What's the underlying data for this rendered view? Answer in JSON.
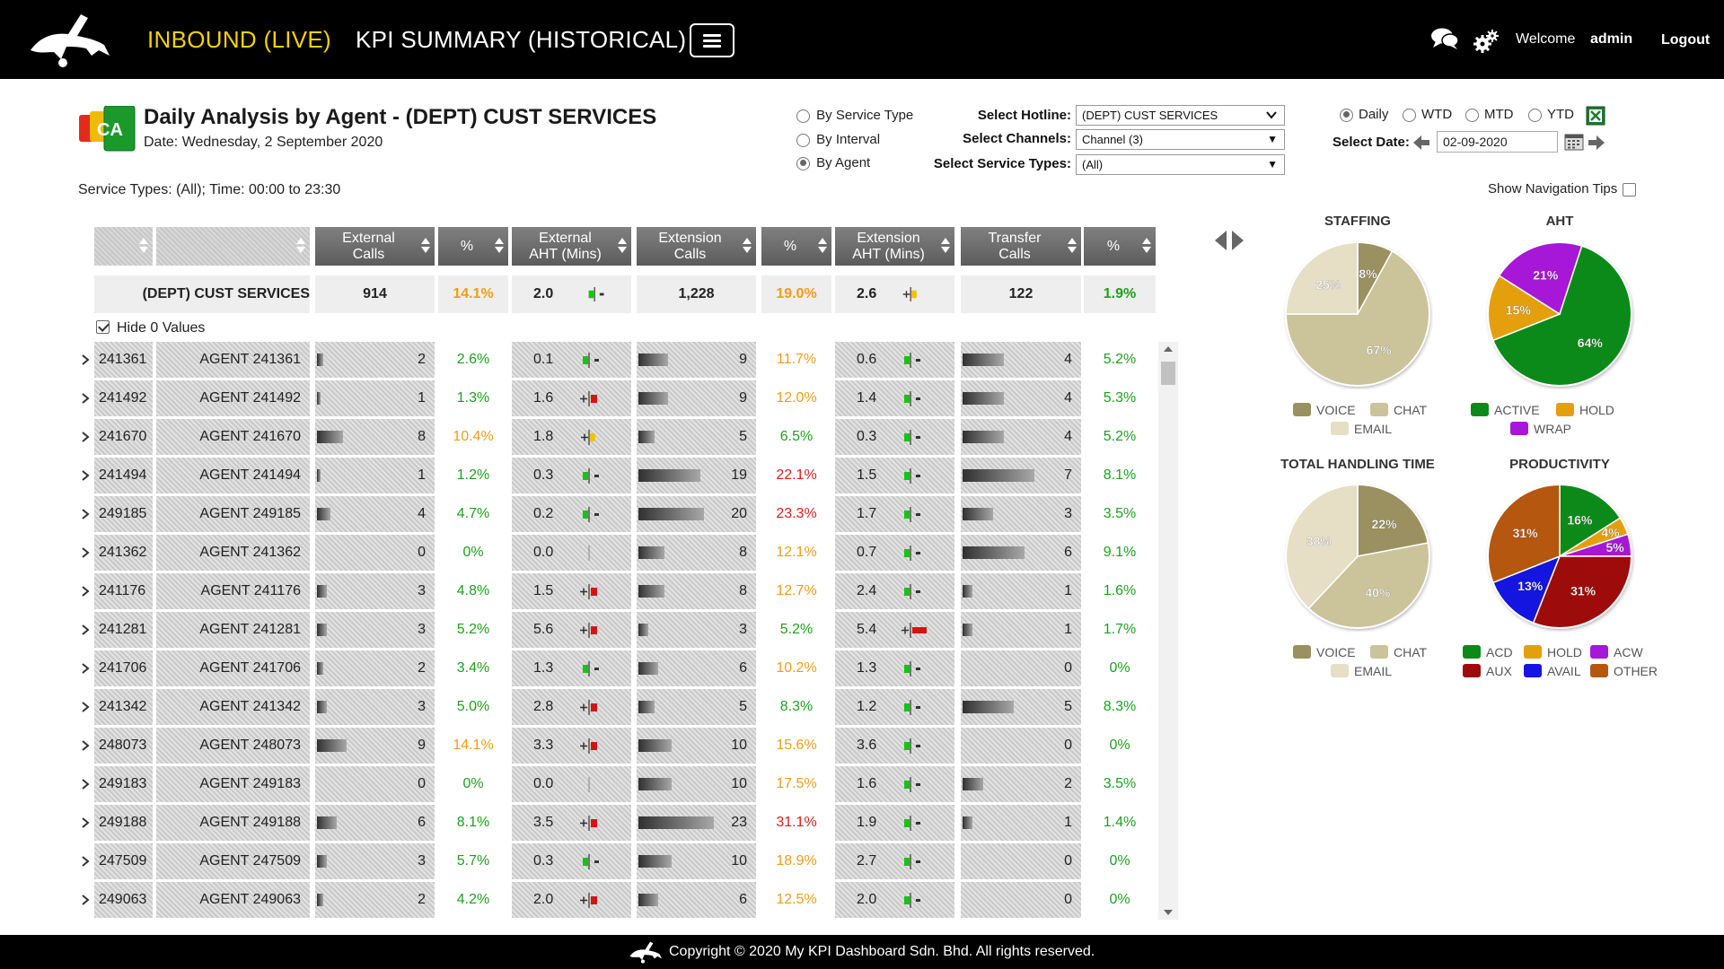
{
  "nav": {
    "live": "INBOUND (LIVE)",
    "kpi": "KPI SUMMARY (HISTORICAL)",
    "welcome": "Welcome",
    "user": "admin",
    "logout": "Logout"
  },
  "report": {
    "icon_text": "CA",
    "title": "Daily Analysis by Agent - (DEPT) CUST SERVICES",
    "date": "Date: Wednesday, 2 September 2020",
    "service_info": "Service Types: (All); Time: 00:00 to 23:30"
  },
  "view_options": [
    "By Service Type",
    "By Interval",
    "By Agent"
  ],
  "view_selected": "By Agent",
  "filters": {
    "hotline_label": "Select Hotline:",
    "hotline_value": "(DEPT) CUST SERVICES",
    "channels_label": "Select Channels:",
    "channels_value": "Channel (3)",
    "service_types_label": "Select Service Types:",
    "service_types_value": "(All)"
  },
  "period_options": [
    "Daily",
    "WTD",
    "MTD",
    "YTD"
  ],
  "period_selected": "Daily",
  "date": {
    "label": "Select Date:",
    "value": "02-09-2020"
  },
  "nav_tips": "Show Navigation Tips",
  "table": {
    "headers": [
      {
        "l1": "",
        "l2": ""
      },
      {
        "l1": "",
        "l2": ""
      },
      {
        "l1": "External",
        "l2": "Calls"
      },
      {
        "l1": "%",
        "l2": ""
      },
      {
        "l1": "External",
        "l2": "AHT (Mins)"
      },
      {
        "l1": "Extension",
        "l2": "Calls"
      },
      {
        "l1": "%",
        "l2": ""
      },
      {
        "l1": "Extension",
        "l2": "AHT (Mins)"
      },
      {
        "l1": "Transfer",
        "l2": "Calls"
      },
      {
        "l1": "%",
        "l2": ""
      }
    ],
    "total": {
      "name": "(DEPT) CUST SERVICES",
      "ext_calls": "914",
      "ext_pct": "14.1%",
      "ext_aht": "2.0",
      "ext_aht_state": "green",
      "xtn_calls": "1,228",
      "xtn_pct": "19.0%",
      "xtn_aht": "2.6",
      "xtn_aht_state": "yellow",
      "trf_calls": "122",
      "trf_pct": "1.9%"
    },
    "hide_zero": "Hide 0 Values",
    "rows": [
      {
        "id": "241361",
        "name": "AGENT 241361",
        "ext_calls": "2",
        "ext_pct": "2.6%",
        "ext_aht": "0.1",
        "ext_state": "green",
        "xtn_calls": "9",
        "xtn_pct": "11.7%",
        "xtn_aht": "0.6",
        "xtn_state": "green",
        "trf_calls": "4",
        "trf_pct": "5.2%"
      },
      {
        "id": "241492",
        "name": "AGENT 241492",
        "ext_calls": "1",
        "ext_pct": "1.3%",
        "ext_aht": "1.6",
        "ext_state": "red",
        "xtn_calls": "9",
        "xtn_pct": "12.0%",
        "xtn_aht": "1.4",
        "xtn_state": "green",
        "trf_calls": "4",
        "trf_pct": "5.3%"
      },
      {
        "id": "241670",
        "name": "AGENT 241670",
        "ext_calls": "8",
        "ext_pct": "10.4%",
        "ext_aht": "1.8",
        "ext_state": "yellow",
        "xtn_calls": "5",
        "xtn_pct": "6.5%",
        "xtn_aht": "0.3",
        "xtn_state": "green",
        "trf_calls": "4",
        "trf_pct": "5.2%"
      },
      {
        "id": "241494",
        "name": "AGENT 241494",
        "ext_calls": "1",
        "ext_pct": "1.2%",
        "ext_aht": "0.3",
        "ext_state": "green",
        "xtn_calls": "19",
        "xtn_pct": "22.1%",
        "xtn_aht": "1.5",
        "xtn_state": "green",
        "trf_calls": "7",
        "trf_pct": "8.1%"
      },
      {
        "id": "249185",
        "name": "AGENT 249185",
        "ext_calls": "4",
        "ext_pct": "4.7%",
        "ext_aht": "0.2",
        "ext_state": "green",
        "xtn_calls": "20",
        "xtn_pct": "23.3%",
        "xtn_aht": "1.7",
        "xtn_state": "green",
        "trf_calls": "3",
        "trf_pct": "3.5%"
      },
      {
        "id": "241362",
        "name": "AGENT 241362",
        "ext_calls": "0",
        "ext_pct": "0%",
        "ext_aht": "0.0",
        "ext_state": "none",
        "xtn_calls": "8",
        "xtn_pct": "12.1%",
        "xtn_aht": "0.7",
        "xtn_state": "green",
        "trf_calls": "6",
        "trf_pct": "9.1%"
      },
      {
        "id": "241176",
        "name": "AGENT 241176",
        "ext_calls": "3",
        "ext_pct": "4.8%",
        "ext_aht": "1.5",
        "ext_state": "red",
        "xtn_calls": "8",
        "xtn_pct": "12.7%",
        "xtn_aht": "2.4",
        "xtn_state": "green",
        "trf_calls": "1",
        "trf_pct": "1.6%"
      },
      {
        "id": "241281",
        "name": "AGENT 241281",
        "ext_calls": "3",
        "ext_pct": "5.2%",
        "ext_aht": "5.6",
        "ext_state": "red",
        "xtn_calls": "3",
        "xtn_pct": "5.2%",
        "xtn_aht": "5.4",
        "xtn_state": "redwide",
        "trf_calls": "1",
        "trf_pct": "1.7%"
      },
      {
        "id": "241706",
        "name": "AGENT 241706",
        "ext_calls": "2",
        "ext_pct": "3.4%",
        "ext_aht": "1.3",
        "ext_state": "green",
        "xtn_calls": "6",
        "xtn_pct": "10.2%",
        "xtn_aht": "1.3",
        "xtn_state": "green",
        "trf_calls": "0",
        "trf_pct": "0%"
      },
      {
        "id": "241342",
        "name": "AGENT 241342",
        "ext_calls": "3",
        "ext_pct": "5.0%",
        "ext_aht": "2.8",
        "ext_state": "red",
        "xtn_calls": "5",
        "xtn_pct": "8.3%",
        "xtn_aht": "1.2",
        "xtn_state": "green",
        "trf_calls": "5",
        "trf_pct": "8.3%"
      },
      {
        "id": "248073",
        "name": "AGENT 248073",
        "ext_calls": "9",
        "ext_pct": "14.1%",
        "ext_aht": "3.3",
        "ext_state": "red",
        "xtn_calls": "10",
        "xtn_pct": "15.6%",
        "xtn_aht": "3.6",
        "xtn_state": "green",
        "trf_calls": "0",
        "trf_pct": "0%"
      },
      {
        "id": "249183",
        "name": "AGENT 249183",
        "ext_calls": "0",
        "ext_pct": "0%",
        "ext_aht": "0.0",
        "ext_state": "none",
        "xtn_calls": "10",
        "xtn_pct": "17.5%",
        "xtn_aht": "1.6",
        "xtn_state": "green",
        "trf_calls": "2",
        "trf_pct": "3.5%"
      },
      {
        "id": "249188",
        "name": "AGENT 249188",
        "ext_calls": "6",
        "ext_pct": "8.1%",
        "ext_aht": "3.5",
        "ext_state": "red",
        "xtn_calls": "23",
        "xtn_pct": "31.1%",
        "xtn_aht": "1.9",
        "xtn_state": "green",
        "trf_calls": "1",
        "trf_pct": "1.4%"
      },
      {
        "id": "247509",
        "name": "AGENT 247509",
        "ext_calls": "3",
        "ext_pct": "5.7%",
        "ext_aht": "0.3",
        "ext_state": "green",
        "xtn_calls": "10",
        "xtn_pct": "18.9%",
        "xtn_aht": "2.7",
        "xtn_state": "green",
        "trf_calls": "0",
        "trf_pct": "0%"
      },
      {
        "id": "249063",
        "name": "AGENT 249063",
        "ext_calls": "2",
        "ext_pct": "4.2%",
        "ext_aht": "2.0",
        "ext_state": "red",
        "xtn_calls": "6",
        "xtn_pct": "12.5%",
        "xtn_aht": "2.0",
        "xtn_state": "green",
        "trf_calls": "0",
        "trf_pct": "0%"
      }
    ]
  },
  "chart_data": [
    {
      "type": "pie",
      "title": "STAFFING",
      "labels": [
        "VOICE",
        "CHAT",
        "EMAIL"
      ],
      "values": [
        8,
        67,
        25
      ],
      "colors": [
        "#9b9060",
        "#cbc39a",
        "#e6dfc6"
      ],
      "label_text": [
        "8%",
        "67%",
        "25%"
      ]
    },
    {
      "type": "pie",
      "title": "AHT",
      "labels": [
        "ACTIVE",
        "HOLD",
        "WRAP"
      ],
      "values": [
        64,
        15,
        21
      ],
      "colors": [
        "#0b8a19",
        "#e4a00c",
        "#a617d8"
      ],
      "label_text": [
        "64%",
        "15%",
        "21%"
      ]
    },
    {
      "type": "pie",
      "title": "TOTAL HANDLING TIME",
      "labels": [
        "VOICE",
        "CHAT",
        "EMAIL"
      ],
      "values": [
        22,
        40,
        38
      ],
      "colors": [
        "#9b9060",
        "#cbc39a",
        "#e6dfc6"
      ],
      "label_text": [
        "22%",
        "40%",
        "38%"
      ]
    },
    {
      "type": "pie",
      "title": "PRODUCTIVITY",
      "labels": [
        "ACD",
        "HOLD",
        "ACW",
        "AUX",
        "AVAIL",
        "OTHER"
      ],
      "values": [
        16,
        4,
        5,
        31,
        13,
        31
      ],
      "colors": [
        "#0b8a19",
        "#e4a00c",
        "#a617d8",
        "#9e0b0b",
        "#1515e0",
        "#b5570e"
      ],
      "label_text": [
        "16%",
        "4%",
        "5%",
        "31%",
        "13%",
        "31%"
      ]
    }
  ],
  "footer": "Copyright © 2020 My KPI Dashboard Sdn. Bhd. All rights reserved."
}
